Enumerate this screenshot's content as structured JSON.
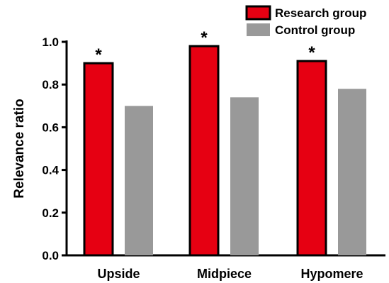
{
  "chart_data": {
    "type": "bar",
    "categories": [
      "Upside",
      "Midpiece",
      "Hypomere"
    ],
    "series": [
      {
        "name": "Research group",
        "values": [
          0.9,
          0.98,
          0.91
        ],
        "color": "#e60012",
        "stroke": "#000000"
      },
      {
        "name": "Control group",
        "values": [
          0.7,
          0.74,
          0.78
        ],
        "color": "#999999",
        "stroke": "none"
      }
    ],
    "ylabel": "Relevance ratio",
    "xlabel": "",
    "ylim": [
      0,
      1.0
    ],
    "yticks": [
      "0.0",
      "0.2",
      "0.4",
      "0.6",
      "0.8",
      "1.0"
    ],
    "annotations": [
      "*",
      "*",
      "*"
    ],
    "grid": false,
    "legend_position": "top-right"
  }
}
